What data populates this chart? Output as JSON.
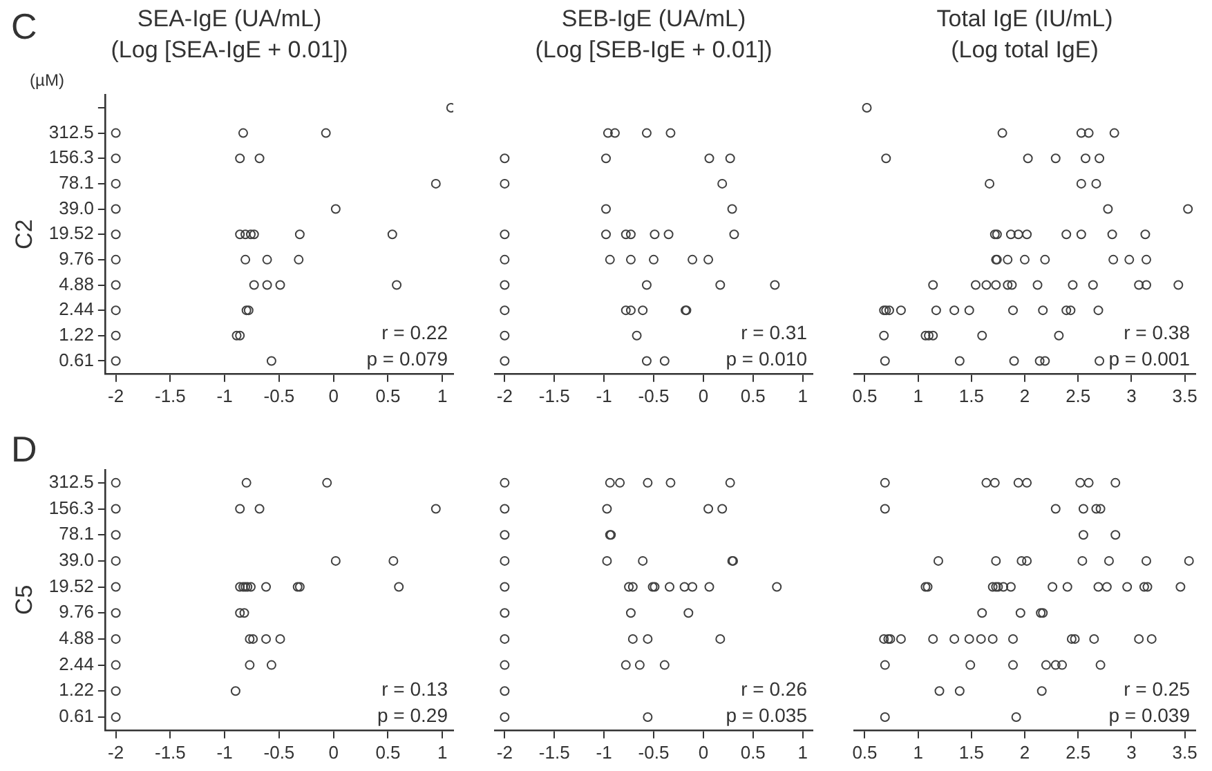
{
  "chart_data": [
    {
      "type": "scatter",
      "orientation": "horizontal",
      "title": "SEA-IgE (UA/mL)",
      "subtitle": "(Log [SEA-IgE + 0.01])",
      "ylabel": "C2",
      "marker": "circle",
      "annotations": [
        "C",
        "(µM)",
        "r = 0.22",
        "p = 0.079"
      ],
      "xlim": [
        -2.1,
        1.1
      ],
      "xticks": [
        -2,
        -1.5,
        -1,
        -0.5,
        0,
        0.5,
        1
      ],
      "categories": [
        null,
        "312.5",
        "156.3",
        "78.1",
        "39.0",
        "19.52",
        "9.76",
        "4.88",
        "2.44",
        "1.22",
        "0.61"
      ],
      "series": [
        {
          "color": "#404040",
          "values": [
            1.08,
            -2,
            -2,
            -2,
            -2,
            -2,
            -2,
            -2,
            -2,
            -2,
            -2
          ]
        },
        {
          "color": "#404040",
          "values": [
            null,
            -0.83,
            -0.86,
            0.94,
            0.02,
            -0.86,
            -0.81,
            -0.73,
            -0.8,
            -0.89,
            -0.57
          ]
        },
        {
          "color": "#404040",
          "values": [
            null,
            -0.07,
            -0.68,
            null,
            null,
            -0.81,
            -0.61,
            -0.61,
            -0.78,
            -0.86,
            null
          ]
        },
        {
          "color": "#404040",
          "values": [
            null,
            null,
            null,
            null,
            null,
            -0.76,
            -0.32,
            -0.49,
            null,
            null,
            null
          ]
        },
        {
          "color": "#404040",
          "values": [
            null,
            null,
            null,
            null,
            null,
            -0.73,
            null,
            0.58,
            null,
            null,
            null
          ]
        },
        {
          "color": "#404040",
          "values": [
            null,
            null,
            null,
            null,
            null,
            -0.31,
            null,
            null,
            null,
            null,
            null
          ]
        },
        {
          "color": "#404040",
          "values": [
            null,
            null,
            null,
            null,
            null,
            0.54,
            null,
            null,
            null,
            null,
            null
          ]
        }
      ]
    },
    {
      "type": "scatter",
      "orientation": "horizontal",
      "title": "SEB-IgE (UA/mL)",
      "subtitle": "(Log [SEB-IgE + 0.01])",
      "marker": "circle",
      "tick_labels": "x",
      "annotations": [
        "r = 0.31",
        "p = 0.010"
      ],
      "xlim": [
        -2.1,
        1.1
      ],
      "xticks": [
        -2,
        -1.5,
        -1,
        -0.5,
        0,
        0.5,
        1
      ],
      "categories": [
        null,
        "312.5",
        "156.3",
        "78.1",
        "39.0",
        "19.52",
        "9.76",
        "4.88",
        "2.44",
        "1.22",
        "0.61"
      ],
      "series": [
        {
          "color": "#404040",
          "values": [
            null,
            -0.96,
            -2,
            -2,
            -0.98,
            -2,
            -2,
            -2,
            -2,
            -2,
            -2
          ]
        },
        {
          "color": "#404040",
          "values": [
            null,
            -0.89,
            -0.98,
            0.19,
            0.29,
            -0.98,
            -0.94,
            -0.57,
            -0.78,
            -0.67,
            -0.57
          ]
        },
        {
          "color": "#404040",
          "values": [
            null,
            -0.57,
            0.06,
            null,
            null,
            -0.78,
            -0.73,
            0.17,
            -0.73,
            null,
            -0.39
          ]
        },
        {
          "color": "#404040",
          "values": [
            null,
            -0.33,
            0.27,
            null,
            null,
            -0.73,
            -0.5,
            0.72,
            -0.61,
            null,
            null
          ]
        },
        {
          "color": "#404040",
          "values": [
            null,
            null,
            null,
            null,
            null,
            -0.49,
            -0.11,
            null,
            -0.18,
            null,
            null
          ]
        },
        {
          "color": "#404040",
          "values": [
            null,
            null,
            null,
            null,
            null,
            -0.35,
            0.05,
            null,
            -0.17,
            null,
            null
          ]
        },
        {
          "color": "#404040",
          "values": [
            null,
            null,
            null,
            null,
            null,
            0.31,
            null,
            null,
            null,
            null,
            null
          ]
        }
      ]
    },
    {
      "type": "scatter",
      "orientation": "horizontal",
      "title": "Total IgE (IU/mL)",
      "subtitle": "(Log total IgE)",
      "marker": "circle",
      "tick_labels": "x",
      "annotations": [
        "r = 0.38",
        "p = 0.001"
      ],
      "xlim": [
        0.4,
        3.6
      ],
      "xticks": [
        0.5,
        1,
        1.5,
        2,
        2.5,
        3,
        3.5
      ],
      "categories": [
        null,
        "312.5",
        "156.3",
        "78.1",
        "39.0",
        "19.52",
        "9.76",
        "4.88",
        "2.44",
        "1.22",
        "0.61"
      ],
      "series": [
        {
          "color": "#404040",
          "values": [
            0.52,
            1.79,
            0.7,
            1.67,
            2.78,
            1.72,
            1.73,
            1.14,
            0.68,
            0.68,
            0.69
          ]
        },
        {
          "color": "#404040",
          "values": [
            null,
            2.53,
            2.03,
            2.53,
            3.53,
            1.74,
            1.74,
            1.54,
            0.7,
            1.07,
            1.39
          ]
        },
        {
          "color": "#404040",
          "values": [
            null,
            2.6,
            2.29,
            2.67,
            null,
            1.87,
            1.84,
            1.64,
            0.73,
            1.1,
            1.9
          ]
        },
        {
          "color": "#404040",
          "values": [
            null,
            2.84,
            2.57,
            null,
            null,
            1.94,
            2.0,
            1.73,
            0.84,
            1.14,
            2.14
          ]
        },
        {
          "color": "#404040",
          "values": [
            null,
            null,
            2.7,
            null,
            null,
            2.02,
            2.19,
            1.84,
            1.17,
            1.6,
            2.19
          ]
        },
        {
          "color": "#404040",
          "values": [
            null,
            null,
            null,
            null,
            null,
            2.39,
            2.83,
            1.88,
            1.34,
            2.32,
            2.7
          ]
        },
        {
          "color": "#404040",
          "values": [
            null,
            null,
            null,
            null,
            null,
            2.53,
            2.98,
            2.12,
            1.48,
            null,
            null
          ]
        },
        {
          "color": "#404040",
          "values": [
            null,
            null,
            null,
            null,
            null,
            2.82,
            3.14,
            2.45,
            1.89,
            null,
            null
          ]
        },
        {
          "color": "#404040",
          "values": [
            null,
            null,
            null,
            null,
            null,
            3.13,
            null,
            2.64,
            2.17,
            null,
            null
          ]
        },
        {
          "color": "#404040",
          "values": [
            null,
            null,
            null,
            null,
            null,
            null,
            null,
            3.07,
            2.39,
            null,
            null
          ]
        },
        {
          "color": "#404040",
          "values": [
            null,
            null,
            null,
            null,
            null,
            null,
            null,
            3.14,
            2.43,
            null,
            null
          ]
        },
        {
          "color": "#404040",
          "values": [
            null,
            null,
            null,
            null,
            null,
            null,
            null,
            3.44,
            2.69,
            null,
            null
          ]
        }
      ]
    },
    {
      "type": "scatter",
      "orientation": "horizontal",
      "ylabel": "C5",
      "marker": "circle",
      "annotations": [
        "D",
        "r = 0.13",
        "p = 0.29"
      ],
      "xlim": [
        -2.1,
        1.1
      ],
      "xticks": [
        -2,
        -1.5,
        -1,
        -0.5,
        0,
        0.5,
        1
      ],
      "categories": [
        "312.5",
        "156.3",
        "78.1",
        "39.0",
        "19.52",
        "9.76",
        "4.88",
        "2.44",
        "1.22",
        "0.61"
      ],
      "series": [
        {
          "color": "#404040",
          "values": [
            -2,
            -2,
            -2,
            -2,
            -2,
            -2,
            -2,
            -2,
            -2,
            -2
          ]
        },
        {
          "color": "#404040",
          "values": [
            -0.8,
            -0.86,
            null,
            0.02,
            -0.86,
            -0.86,
            -0.77,
            -0.77,
            -0.9,
            null
          ]
        },
        {
          "color": "#404040",
          "values": [
            -0.06,
            -0.68,
            null,
            0.55,
            -0.83,
            -0.82,
            -0.74,
            -0.57,
            null,
            null
          ]
        },
        {
          "color": "#404040",
          "values": [
            null,
            0.94,
            null,
            null,
            -0.81,
            null,
            -0.62,
            null,
            null,
            null
          ]
        },
        {
          "color": "#404040",
          "values": [
            null,
            null,
            null,
            null,
            -0.79,
            null,
            -0.49,
            null,
            null,
            null
          ]
        },
        {
          "color": "#404040",
          "values": [
            null,
            null,
            null,
            null,
            -0.76,
            null,
            null,
            null,
            null,
            null
          ]
        },
        {
          "color": "#404040",
          "values": [
            null,
            null,
            null,
            null,
            -0.62,
            null,
            null,
            null,
            null,
            null
          ]
        },
        {
          "color": "#404040",
          "values": [
            null,
            null,
            null,
            null,
            -0.33,
            null,
            null,
            null,
            null,
            null
          ]
        },
        {
          "color": "#404040",
          "values": [
            null,
            null,
            null,
            null,
            -0.31,
            null,
            null,
            null,
            null,
            null
          ]
        },
        {
          "color": "#404040",
          "values": [
            null,
            null,
            null,
            null,
            0.6,
            null,
            null,
            null,
            null,
            null
          ]
        }
      ]
    },
    {
      "type": "scatter",
      "orientation": "horizontal",
      "marker": "circle",
      "tick_labels": "x",
      "annotations": [
        "r = 0.26",
        "p = 0.035"
      ],
      "xlim": [
        -2.1,
        1.1
      ],
      "xticks": [
        -2,
        -1.5,
        -1,
        -0.5,
        0,
        0.5,
        1
      ],
      "categories": [
        "312.5",
        "156.3",
        "78.1",
        "39.0",
        "19.52",
        "9.76",
        "4.88",
        "2.44",
        "1.22",
        "0.61"
      ],
      "series": [
        {
          "color": "#404040",
          "values": [
            -2,
            -2,
            -2,
            -2,
            -2,
            -2,
            -2,
            -2,
            -2,
            -2
          ]
        },
        {
          "color": "#404040",
          "values": [
            -0.94,
            -0.97,
            -0.94,
            -0.97,
            -0.75,
            -0.73,
            -0.71,
            -0.78,
            null,
            -0.56
          ]
        },
        {
          "color": "#404040",
          "values": [
            -0.84,
            0.05,
            -0.93,
            -0.61,
            -0.71,
            -0.15,
            -0.56,
            -0.64,
            null,
            null
          ]
        },
        {
          "color": "#404040",
          "values": [
            -0.56,
            0.19,
            null,
            0.29,
            -0.51,
            null,
            0.17,
            -0.39,
            null,
            null
          ]
        },
        {
          "color": "#404040",
          "values": [
            -0.33,
            null,
            null,
            0.3,
            -0.49,
            null,
            null,
            null,
            null,
            null
          ]
        },
        {
          "color": "#404040",
          "values": [
            0.27,
            null,
            null,
            null,
            -0.34,
            null,
            null,
            null,
            null,
            null
          ]
        },
        {
          "color": "#404040",
          "values": [
            null,
            null,
            null,
            null,
            -0.19,
            null,
            null,
            null,
            null,
            null
          ]
        },
        {
          "color": "#404040",
          "values": [
            null,
            null,
            null,
            null,
            -0.11,
            null,
            null,
            null,
            null,
            null
          ]
        },
        {
          "color": "#404040",
          "values": [
            null,
            null,
            null,
            null,
            0.06,
            null,
            null,
            null,
            null,
            null
          ]
        },
        {
          "color": "#404040",
          "values": [
            null,
            null,
            null,
            null,
            0.74,
            null,
            null,
            null,
            null,
            null
          ]
        }
      ]
    },
    {
      "type": "scatter",
      "orientation": "horizontal",
      "marker": "circle",
      "tick_labels": "x",
      "annotations": [
        "r = 0.25",
        "p = 0.039"
      ],
      "xlim": [
        0.4,
        3.6
      ],
      "xticks": [
        0.5,
        1,
        1.5,
        2,
        2.5,
        3,
        3.5
      ],
      "categories": [
        "312.5",
        "156.3",
        "78.1",
        "39.0",
        "19.52",
        "9.76",
        "4.88",
        "2.44",
        "1.22",
        "0.61"
      ],
      "series": [
        {
          "color": "#404040",
          "values": [
            0.69,
            0.69,
            2.55,
            1.19,
            1.07,
            1.6,
            0.68,
            0.69,
            1.2,
            0.69
          ]
        },
        {
          "color": "#404040",
          "values": [
            1.64,
            2.29,
            2.85,
            1.73,
            1.09,
            1.96,
            0.72,
            1.49,
            1.39,
            1.92
          ]
        },
        {
          "color": "#404040",
          "values": [
            1.72,
            2.55,
            null,
            1.97,
            1.7,
            2.15,
            0.74,
            1.89,
            2.16,
            null
          ]
        },
        {
          "color": "#404040",
          "values": [
            1.94,
            2.67,
            null,
            2.02,
            1.73,
            2.17,
            0.84,
            2.2,
            null,
            null
          ]
        },
        {
          "color": "#404040",
          "values": [
            2.02,
            2.71,
            null,
            2.54,
            1.75,
            null,
            1.14,
            2.29,
            null,
            null
          ]
        },
        {
          "color": "#404040",
          "values": [
            2.52,
            null,
            null,
            2.79,
            1.8,
            null,
            1.34,
            2.35,
            null,
            null
          ]
        },
        {
          "color": "#404040",
          "values": [
            2.6,
            null,
            null,
            3.14,
            1.87,
            null,
            1.48,
            2.71,
            null,
            null
          ]
        },
        {
          "color": "#404040",
          "values": [
            2.85,
            null,
            null,
            3.54,
            2.26,
            null,
            1.59,
            null,
            null,
            null
          ]
        },
        {
          "color": "#404040",
          "values": [
            null,
            null,
            null,
            null,
            2.4,
            null,
            1.7,
            null,
            null,
            null
          ]
        },
        {
          "color": "#404040",
          "values": [
            null,
            null,
            null,
            null,
            2.69,
            null,
            1.89,
            null,
            null,
            null
          ]
        },
        {
          "color": "#404040",
          "values": [
            null,
            null,
            null,
            null,
            2.77,
            null,
            2.44,
            null,
            null,
            null
          ]
        },
        {
          "color": "#404040",
          "values": [
            null,
            null,
            null,
            null,
            2.96,
            null,
            2.47,
            null,
            null,
            null
          ]
        },
        {
          "color": "#404040",
          "values": [
            null,
            null,
            null,
            null,
            3.12,
            null,
            2.65,
            null,
            null,
            null
          ]
        },
        {
          "color": "#404040",
          "values": [
            null,
            null,
            null,
            null,
            3.15,
            null,
            3.07,
            null,
            null,
            null
          ]
        },
        {
          "color": "#404040",
          "values": [
            null,
            null,
            null,
            null,
            3.46,
            null,
            3.19,
            null,
            null,
            null
          ]
        }
      ]
    }
  ]
}
